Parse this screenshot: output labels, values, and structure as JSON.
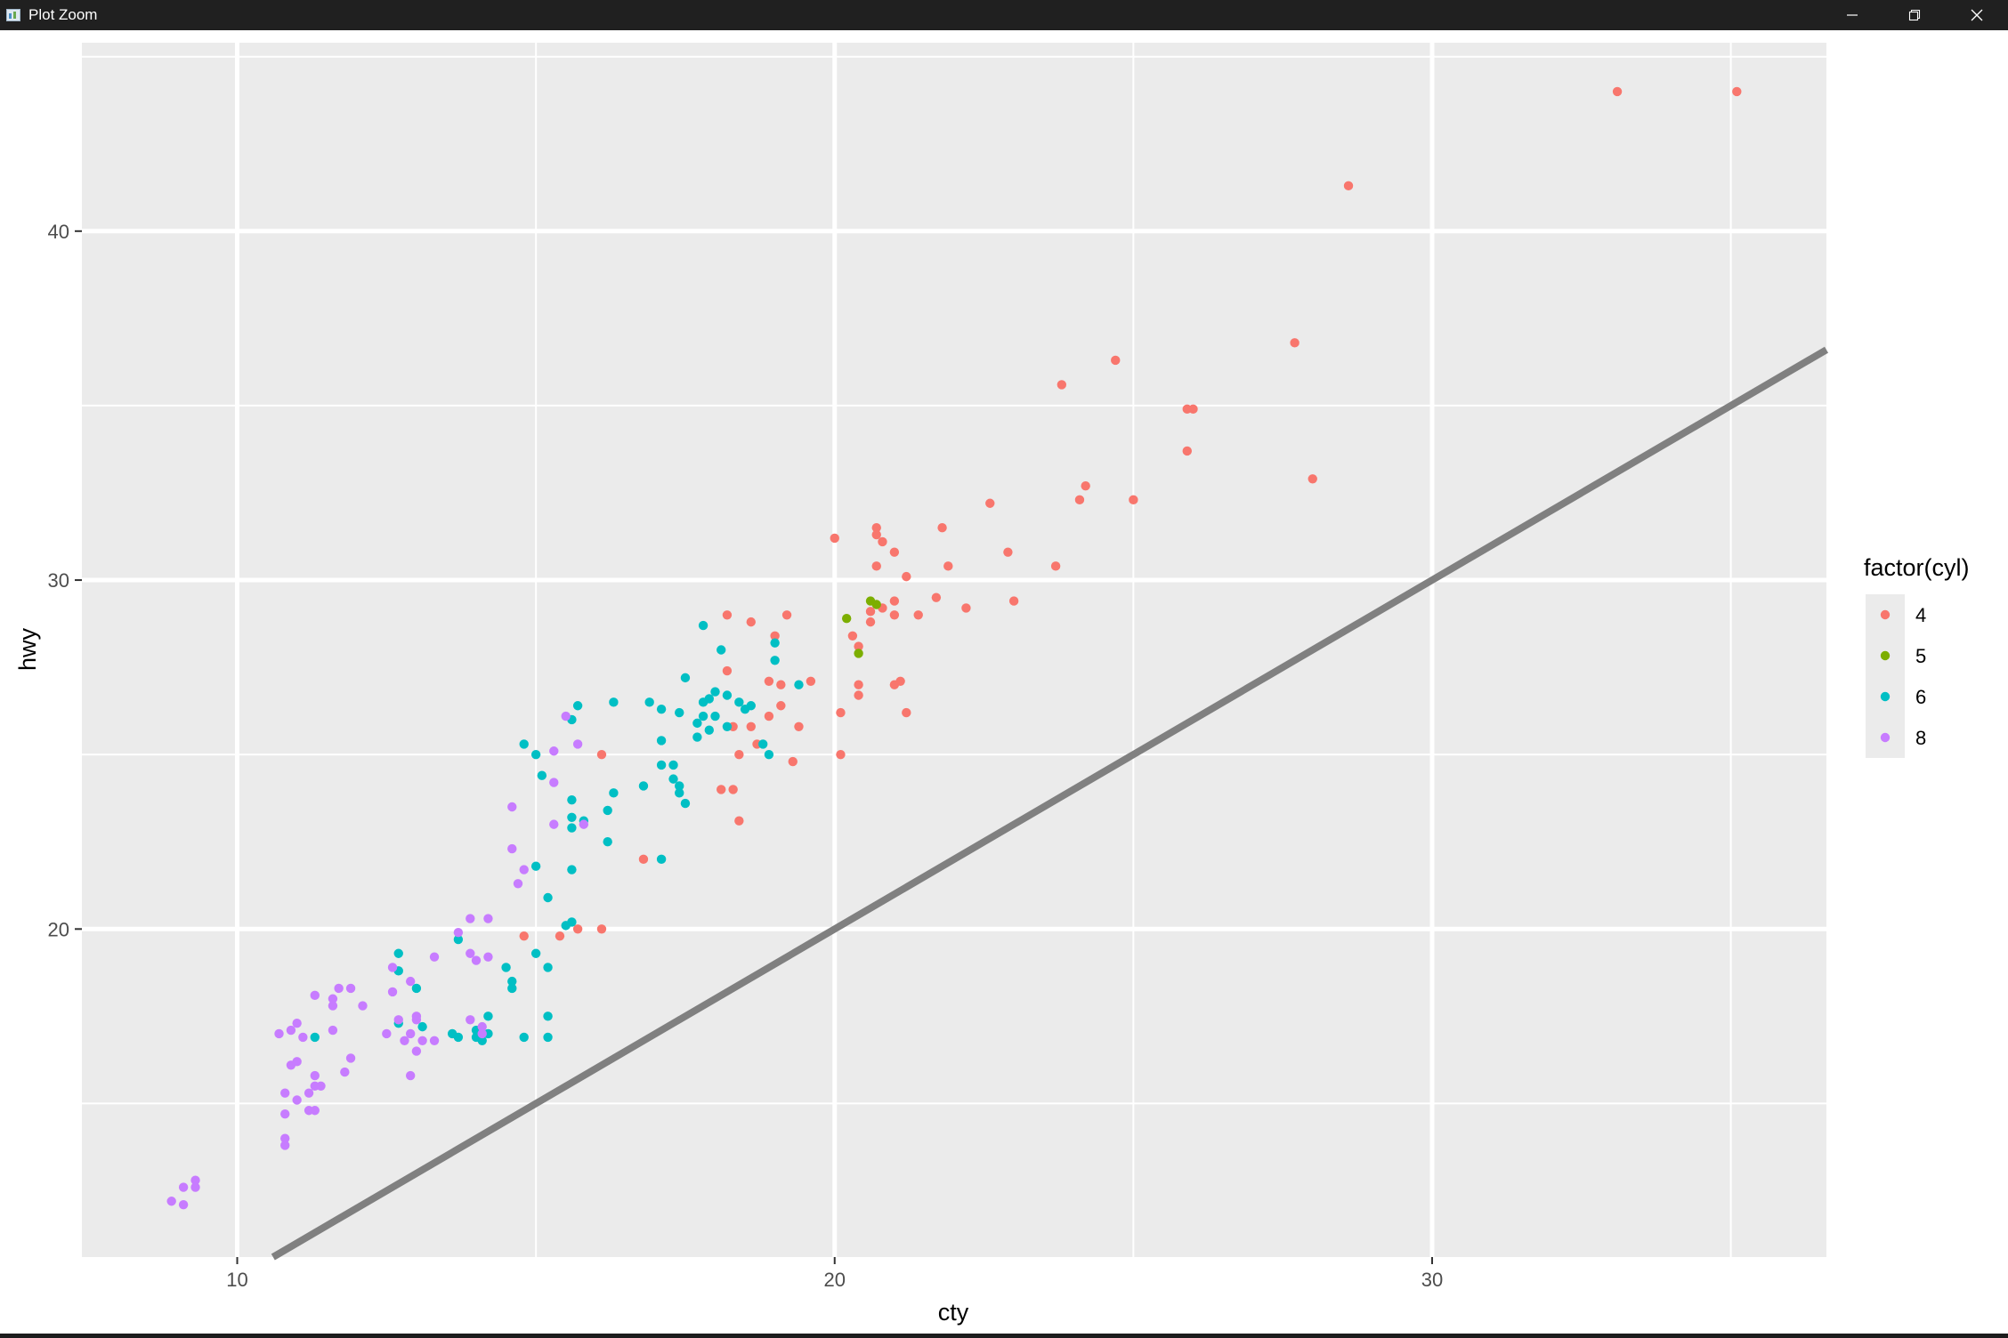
{
  "window": {
    "title": "Plot Zoom",
    "icon": "r-plot-window-icon",
    "controls": [
      "minimize-icon",
      "restore-icon",
      "close-icon"
    ]
  },
  "chart_data": {
    "type": "scatter",
    "xlabel": "cty",
    "ylabel": "hwy",
    "xlim": [
      7.4,
      36.6
    ],
    "ylim": [
      10.6,
      45.4
    ],
    "x_ticks": [
      10,
      20,
      30
    ],
    "y_ticks": [
      20,
      30,
      40
    ],
    "grid": true,
    "legend": {
      "title": "factor(cyl)",
      "position": "right",
      "entries": [
        "4",
        "5",
        "6",
        "8"
      ]
    },
    "reference_line": {
      "slope": 1,
      "intercept": 0,
      "color": "#808080"
    },
    "colors": {
      "4": "#F8766D",
      "5": "#7CAE00",
      "6": "#00BFC4",
      "8": "#C77CFF"
    },
    "series": [
      {
        "name": "4",
        "color": "#F8766D",
        "points": [
          [
            33.1,
            44
          ],
          [
            35.1,
            44
          ],
          [
            28.6,
            41.3
          ],
          [
            27.7,
            36.8
          ],
          [
            24.7,
            36.3
          ],
          [
            23.8,
            35.6
          ],
          [
            25.9,
            34.9
          ],
          [
            26.0,
            34.9
          ],
          [
            25.9,
            33.7
          ],
          [
            28.0,
            32.9
          ],
          [
            24.2,
            32.7
          ],
          [
            24.1,
            32.3
          ],
          [
            25.0,
            32.3
          ],
          [
            22.6,
            32.2
          ],
          [
            21.8,
            31.5
          ],
          [
            20.7,
            31.3
          ],
          [
            20.7,
            31.5
          ],
          [
            20.8,
            31.1
          ],
          [
            21.0,
            30.8
          ],
          [
            20.0,
            31.2
          ],
          [
            22.9,
            30.8
          ],
          [
            20.7,
            30.4
          ],
          [
            21.9,
            30.4
          ],
          [
            23.7,
            30.4
          ],
          [
            21.2,
            30.1
          ],
          [
            20.6,
            29.1
          ],
          [
            20.8,
            29.2
          ],
          [
            21.0,
            29.4
          ],
          [
            21.4,
            29.0
          ],
          [
            21.7,
            29.5
          ],
          [
            22.2,
            29.2
          ],
          [
            23.0,
            29.4
          ],
          [
            21.0,
            29.0
          ],
          [
            20.6,
            28.8
          ],
          [
            20.3,
            28.4
          ],
          [
            20.4,
            28.1
          ],
          [
            19.2,
            29.0
          ],
          [
            18.2,
            29.0
          ],
          [
            18.6,
            28.8
          ],
          [
            19.0,
            28.4
          ],
          [
            18.2,
            27.4
          ],
          [
            18.9,
            27.1
          ],
          [
            19.1,
            27.0
          ],
          [
            19.6,
            27.1
          ],
          [
            20.4,
            27.0
          ],
          [
            21.1,
            27.1
          ],
          [
            21.0,
            27.0
          ],
          [
            20.4,
            26.7
          ],
          [
            20.1,
            26.2
          ],
          [
            21.2,
            26.2
          ],
          [
            19.1,
            26.4
          ],
          [
            18.9,
            26.1
          ],
          [
            18.3,
            25.8
          ],
          [
            18.6,
            25.8
          ],
          [
            19.4,
            25.8
          ],
          [
            18.7,
            25.3
          ],
          [
            20.1,
            25.0
          ],
          [
            18.4,
            25.0
          ],
          [
            19.3,
            24.8
          ],
          [
            16.1,
            25.0
          ],
          [
            18.1,
            24.0
          ],
          [
            18.3,
            24.0
          ],
          [
            18.4,
            23.1
          ],
          [
            16.8,
            22.0
          ],
          [
            14.8,
            19.8
          ],
          [
            15.4,
            19.8
          ],
          [
            15.7,
            20.0
          ],
          [
            16.1,
            20.0
          ]
        ]
      },
      {
        "name": "5",
        "color": "#7CAE00",
        "points": [
          [
            20.2,
            28.9
          ],
          [
            20.6,
            29.4
          ],
          [
            20.7,
            29.3
          ],
          [
            20.4,
            27.9
          ]
        ]
      },
      {
        "name": "6",
        "color": "#00BFC4",
        "points": [
          [
            17.8,
            28.7
          ],
          [
            18.1,
            28.0
          ],
          [
            19.0,
            28.2
          ],
          [
            19.0,
            27.7
          ],
          [
            19.4,
            27.0
          ],
          [
            17.5,
            27.2
          ],
          [
            16.3,
            26.5
          ],
          [
            16.9,
            26.5
          ],
          [
            17.1,
            26.3
          ],
          [
            17.4,
            26.2
          ],
          [
            17.8,
            26.5
          ],
          [
            17.9,
            26.6
          ],
          [
            18.0,
            26.8
          ],
          [
            18.2,
            26.7
          ],
          [
            18.4,
            26.5
          ],
          [
            18.5,
            26.3
          ],
          [
            18.6,
            26.4
          ],
          [
            15.7,
            26.4
          ],
          [
            15.6,
            26.0
          ],
          [
            17.8,
            26.1
          ],
          [
            18.0,
            26.1
          ],
          [
            18.2,
            25.8
          ],
          [
            17.9,
            25.7
          ],
          [
            17.7,
            25.5
          ],
          [
            17.1,
            25.4
          ],
          [
            17.7,
            25.9
          ],
          [
            14.8,
            25.3
          ],
          [
            15.0,
            25.0
          ],
          [
            18.8,
            25.3
          ],
          [
            18.9,
            25.0
          ],
          [
            17.1,
            24.7
          ],
          [
            17.3,
            24.7
          ],
          [
            17.3,
            24.3
          ],
          [
            17.4,
            24.1
          ],
          [
            17.4,
            23.9
          ],
          [
            17.5,
            23.6
          ],
          [
            16.8,
            24.1
          ],
          [
            15.1,
            24.4
          ],
          [
            15.6,
            23.7
          ],
          [
            16.3,
            23.9
          ],
          [
            15.6,
            23.2
          ],
          [
            15.8,
            23.1
          ],
          [
            16.2,
            23.4
          ],
          [
            15.6,
            22.9
          ],
          [
            16.2,
            22.5
          ],
          [
            17.1,
            22.0
          ],
          [
            15.0,
            21.8
          ],
          [
            15.6,
            21.7
          ],
          [
            15.2,
            20.9
          ],
          [
            15.6,
            20.2
          ],
          [
            15.5,
            20.1
          ],
          [
            13.7,
            19.7
          ],
          [
            12.7,
            19.3
          ],
          [
            15.0,
            19.3
          ],
          [
            14.5,
            18.9
          ],
          [
            12.7,
            18.8
          ],
          [
            14.6,
            18.5
          ],
          [
            15.2,
            18.9
          ],
          [
            13.0,
            18.3
          ],
          [
            14.6,
            18.3
          ],
          [
            13.1,
            17.2
          ],
          [
            13.6,
            17.0
          ],
          [
            13.7,
            16.9
          ],
          [
            14.0,
            16.9
          ],
          [
            14.0,
            17.1
          ],
          [
            14.2,
            17.5
          ],
          [
            14.2,
            17.0
          ],
          [
            14.1,
            16.8
          ],
          [
            12.7,
            17.3
          ],
          [
            15.2,
            17.5
          ],
          [
            11.3,
            16.9
          ],
          [
            14.8,
            16.9
          ],
          [
            15.2,
            16.9
          ]
        ]
      },
      {
        "name": "8",
        "color": "#C77CFF",
        "points": [
          [
            15.5,
            26.1
          ],
          [
            15.7,
            25.3
          ],
          [
            15.3,
            25.1
          ],
          [
            15.3,
            24.2
          ],
          [
            14.6,
            23.5
          ],
          [
            15.3,
            23.0
          ],
          [
            15.8,
            23.0
          ],
          [
            14.8,
            21.7
          ],
          [
            14.7,
            21.3
          ],
          [
            14.6,
            22.3
          ],
          [
            13.9,
            20.3
          ],
          [
            14.2,
            20.3
          ],
          [
            13.7,
            19.9
          ],
          [
            13.9,
            19.3
          ],
          [
            14.0,
            19.1
          ],
          [
            14.2,
            19.2
          ],
          [
            13.3,
            19.2
          ],
          [
            12.6,
            18.9
          ],
          [
            11.7,
            18.3
          ],
          [
            11.9,
            18.3
          ],
          [
            12.9,
            18.5
          ],
          [
            12.6,
            18.2
          ],
          [
            11.6,
            18.0
          ],
          [
            11.3,
            18.1
          ],
          [
            11.6,
            17.8
          ],
          [
            12.1,
            17.8
          ],
          [
            11.6,
            17.1
          ],
          [
            12.7,
            17.4
          ],
          [
            13.0,
            17.4
          ],
          [
            13.0,
            17.5
          ],
          [
            13.9,
            17.4
          ],
          [
            14.1,
            17.2
          ],
          [
            10.7,
            17.0
          ],
          [
            10.9,
            17.1
          ],
          [
            11.0,
            17.3
          ],
          [
            11.1,
            16.9
          ],
          [
            12.9,
            17.0
          ],
          [
            13.1,
            16.8
          ],
          [
            13.3,
            16.8
          ],
          [
            12.8,
            16.8
          ],
          [
            12.5,
            17.0
          ],
          [
            14.1,
            17.0
          ],
          [
            11.9,
            16.3
          ],
          [
            13.0,
            16.5
          ],
          [
            10.9,
            16.1
          ],
          [
            11.0,
            16.2
          ],
          [
            11.3,
            15.8
          ],
          [
            11.8,
            15.9
          ],
          [
            12.9,
            15.8
          ],
          [
            10.8,
            15.3
          ],
          [
            11.0,
            15.1
          ],
          [
            11.2,
            15.3
          ],
          [
            11.3,
            15.5
          ],
          [
            11.4,
            15.5
          ],
          [
            10.8,
            14.7
          ],
          [
            11.2,
            14.8
          ],
          [
            11.3,
            14.8
          ],
          [
            10.8,
            14.0
          ],
          [
            10.8,
            13.8
          ],
          [
            8.9,
            12.2
          ],
          [
            9.1,
            12.1
          ],
          [
            9.1,
            12.6
          ],
          [
            9.3,
            12.6
          ],
          [
            9.3,
            12.8
          ]
        ]
      }
    ]
  }
}
